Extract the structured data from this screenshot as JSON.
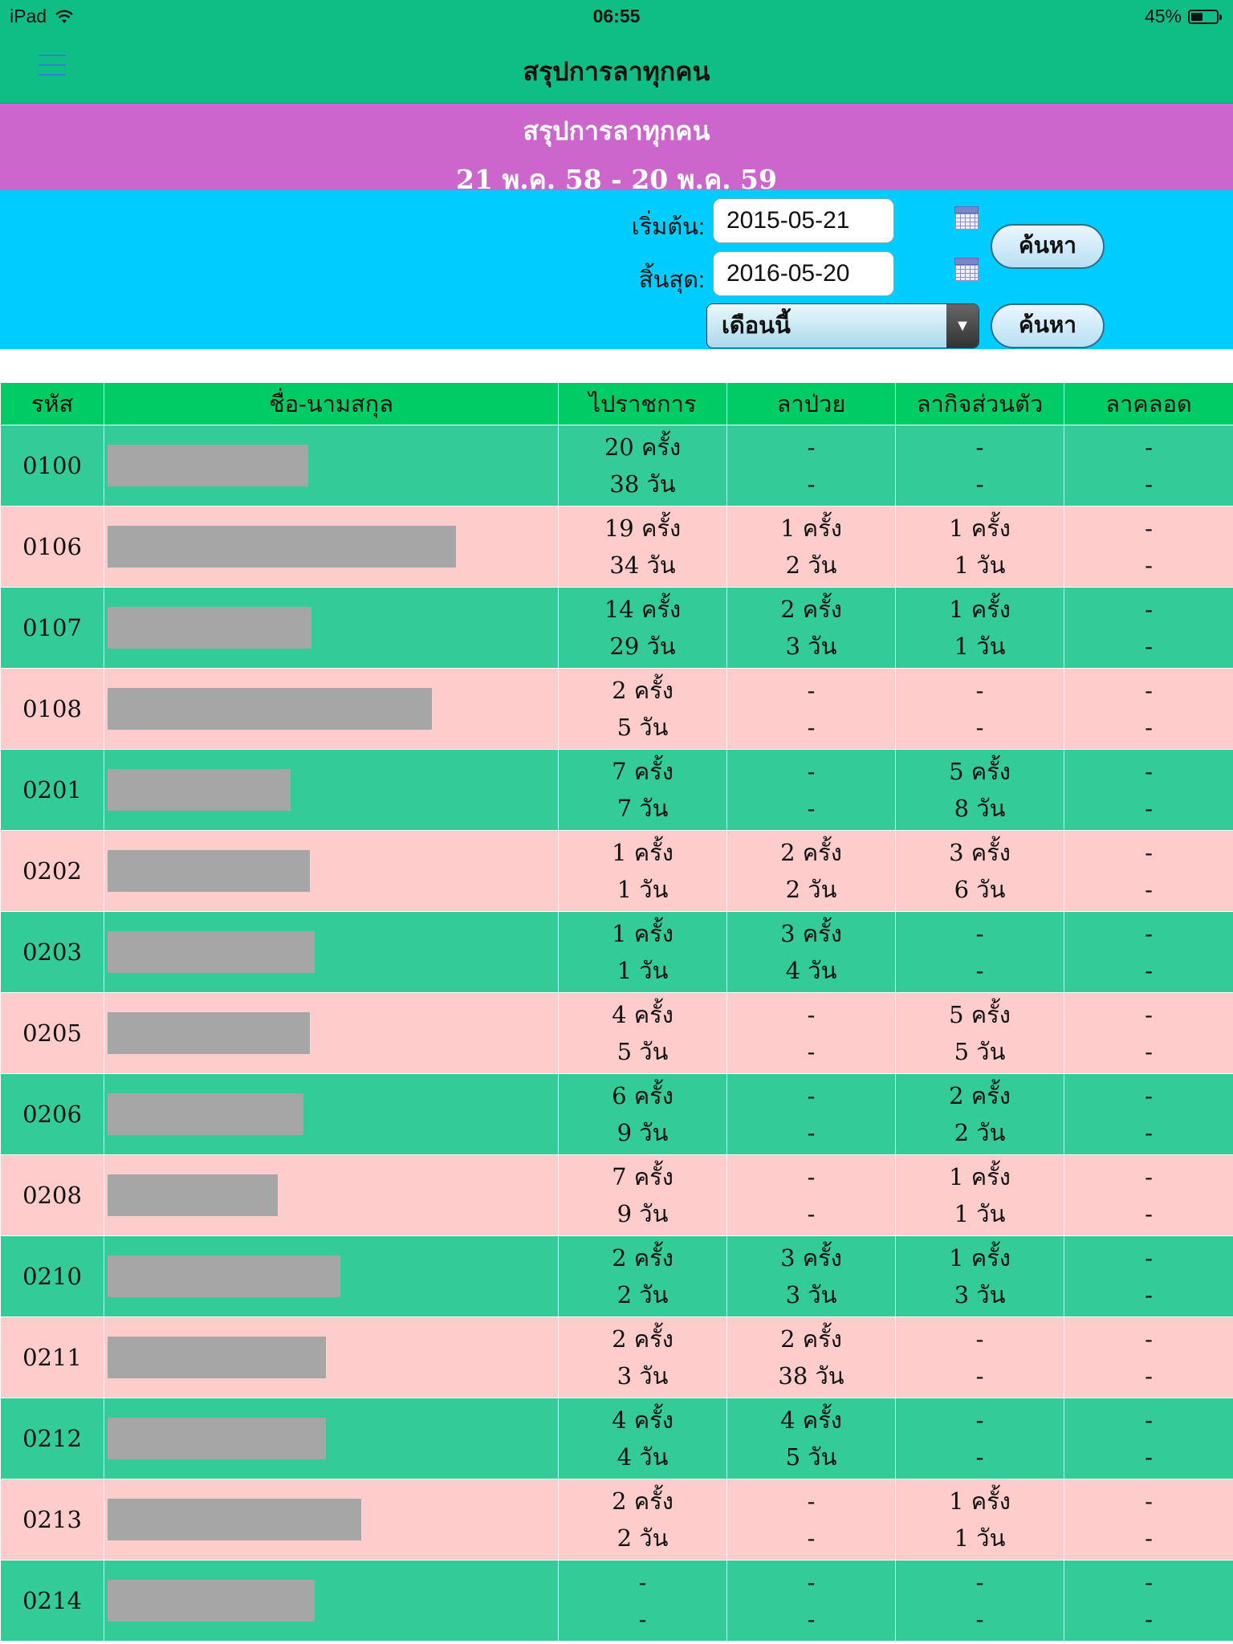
{
  "status_bar": {
    "device": "iPad",
    "time": "06:55",
    "battery": "45%",
    "battery_level": 0.45
  },
  "nav": {
    "title": "สรุปการลาทุกคน"
  },
  "banner": {
    "title": "สรุปการลาทุกคน",
    "date_range": "21 พ.ค. 58 - 20 พ.ค. 59"
  },
  "filter": {
    "start_label": "เริ่มต้น:",
    "start_value": "2015-05-21",
    "end_label": "สิ้นสุด:",
    "end_value": "2016-05-20",
    "search_label": "ค้นหา",
    "period_value": "เดือนนี้",
    "search2_label": "ค้นหา"
  },
  "table": {
    "headers": [
      "รหัส",
      "ชื่อ-นามสกุล",
      "ไปราชการ",
      "ลาป่วย",
      "ลากิจส่วนตัว",
      "ลาคลอด"
    ],
    "rows": [
      {
        "code": "0100",
        "official": [
          "20 ครั้ง",
          "38 วัน"
        ],
        "sick": [
          "-",
          "-"
        ],
        "personal": [
          "-",
          "-"
        ],
        "maternity": [
          "-",
          "-"
        ]
      },
      {
        "code": "0106",
        "official": [
          "19 ครั้ง",
          "34 วัน"
        ],
        "sick": [
          "1 ครั้ง",
          "2 วัน"
        ],
        "personal": [
          "1 ครั้ง",
          "1 วัน"
        ],
        "maternity": [
          "-",
          "-"
        ]
      },
      {
        "code": "0107",
        "official": [
          "14 ครั้ง",
          "29 วัน"
        ],
        "sick": [
          "2 ครั้ง",
          "3 วัน"
        ],
        "personal": [
          "1 ครั้ง",
          "1 วัน"
        ],
        "maternity": [
          "-",
          "-"
        ]
      },
      {
        "code": "0108",
        "official": [
          "2 ครั้ง",
          "5 วัน"
        ],
        "sick": [
          "-",
          "-"
        ],
        "personal": [
          "-",
          "-"
        ],
        "maternity": [
          "-",
          "-"
        ]
      },
      {
        "code": "0201",
        "official": [
          "7 ครั้ง",
          "7 วัน"
        ],
        "sick": [
          "-",
          "-"
        ],
        "personal": [
          "5 ครั้ง",
          "8 วัน"
        ],
        "maternity": [
          "-",
          "-"
        ]
      },
      {
        "code": "0202",
        "official": [
          "1 ครั้ง",
          "1 วัน"
        ],
        "sick": [
          "2 ครั้ง",
          "2 วัน"
        ],
        "personal": [
          "3 ครั้ง",
          "6 วัน"
        ],
        "maternity": [
          "-",
          "-"
        ]
      },
      {
        "code": "0203",
        "official": [
          "1 ครั้ง",
          "1 วัน"
        ],
        "sick": [
          "3 ครั้ง",
          "4 วัน"
        ],
        "personal": [
          "-",
          "-"
        ],
        "maternity": [
          "-",
          "-"
        ]
      },
      {
        "code": "0205",
        "official": [
          "4 ครั้ง",
          "5 วัน"
        ],
        "sick": [
          "-",
          "-"
        ],
        "personal": [
          "5 ครั้ง",
          "5 วัน"
        ],
        "maternity": [
          "-",
          "-"
        ]
      },
      {
        "code": "0206",
        "official": [
          "6 ครั้ง",
          "9 วัน"
        ],
        "sick": [
          "-",
          "-"
        ],
        "personal": [
          "2 ครั้ง",
          "2 วัน"
        ],
        "maternity": [
          "-",
          "-"
        ]
      },
      {
        "code": "0208",
        "official": [
          "7 ครั้ง",
          "9 วัน"
        ],
        "sick": [
          "-",
          "-"
        ],
        "personal": [
          "1 ครั้ง",
          "1 วัน"
        ],
        "maternity": [
          "-",
          "-"
        ]
      },
      {
        "code": "0210",
        "official": [
          "2 ครั้ง",
          "2 วัน"
        ],
        "sick": [
          "3 ครั้ง",
          "3 วัน"
        ],
        "personal": [
          "1 ครั้ง",
          "3 วัน"
        ],
        "maternity": [
          "-",
          "-"
        ]
      },
      {
        "code": "0211",
        "official": [
          "2 ครั้ง",
          "3 วัน"
        ],
        "sick": [
          "2 ครั้ง",
          "38 วัน"
        ],
        "personal": [
          "-",
          "-"
        ],
        "maternity": [
          "-",
          "-"
        ]
      },
      {
        "code": "0212",
        "official": [
          "4 ครั้ง",
          "4 วัน"
        ],
        "sick": [
          "4 ครั้ง",
          "5 วัน"
        ],
        "personal": [
          "-",
          "-"
        ],
        "maternity": [
          "-",
          "-"
        ]
      },
      {
        "code": "0213",
        "official": [
          "2 ครั้ง",
          "2 วัน"
        ],
        "sick": [
          "-",
          "-"
        ],
        "personal": [
          "1 ครั้ง",
          "1 วัน"
        ],
        "maternity": [
          "-",
          "-"
        ]
      },
      {
        "code": "0214",
        "official": [
          "-",
          "-"
        ],
        "sick": [
          "-",
          "-"
        ],
        "personal": [
          "-",
          "-"
        ],
        "maternity": [
          "-",
          "-"
        ]
      }
    ]
  }
}
